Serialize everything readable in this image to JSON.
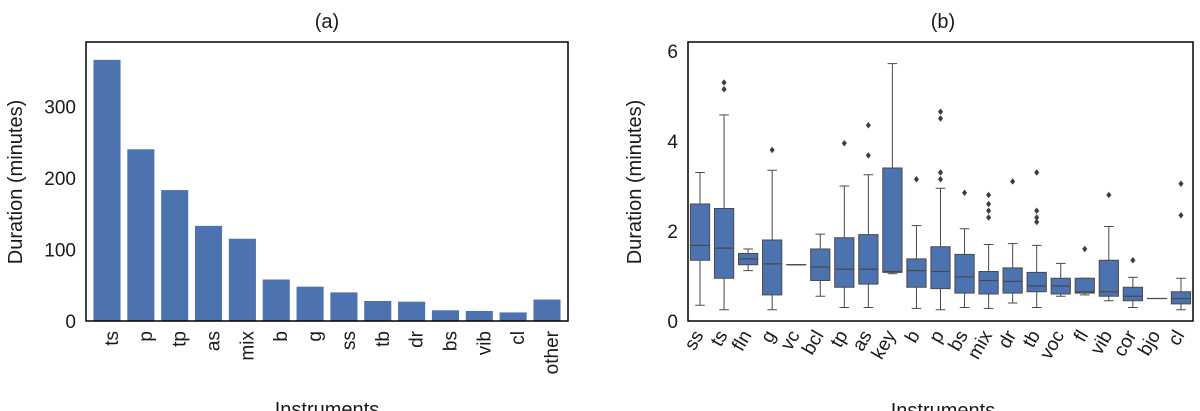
{
  "chart_data": [
    {
      "type": "bar",
      "panel_label": "(a)",
      "title": "(a)",
      "xlabel": "Instruments",
      "ylabel": "Duration (minutes)",
      "ylim": [
        0,
        390
      ],
      "yticks": [
        0,
        100,
        200,
        300
      ],
      "grid": false,
      "color": "#4c72b0",
      "categories": [
        "ts",
        "p",
        "tp",
        "as",
        "mix",
        "b",
        "g",
        "ss",
        "tb",
        "dr",
        "bs",
        "vib",
        "cl",
        "other"
      ],
      "values": [
        365,
        240,
        183,
        133,
        115,
        58,
        48,
        40,
        28,
        27,
        15,
        14,
        12,
        30
      ]
    },
    {
      "type": "box",
      "panel_label": "(b)",
      "title": "(b)",
      "xlabel": "Instruments",
      "ylabel": "Duration (minutes)",
      "ylim": [
        0,
        6.2
      ],
      "yticks": [
        0,
        2,
        4,
        6
      ],
      "grid": false,
      "color": "#4c72b0",
      "categories": [
        "ss",
        "ts",
        "fln",
        "g",
        "vc",
        "bcl",
        "tp",
        "as",
        "key",
        "b",
        "p",
        "bs",
        "mix",
        "dr",
        "tb",
        "voc",
        "fl",
        "vib",
        "cor",
        "bjo",
        "cl"
      ],
      "boxes": [
        {
          "whislo": 0.35,
          "q1": 1.35,
          "med": 1.68,
          "q3": 2.6,
          "whishi": 3.3,
          "fliers": []
        },
        {
          "whislo": 0.25,
          "q1": 0.95,
          "med": 1.62,
          "q3": 2.5,
          "whishi": 4.58,
          "fliers": [
            5.15,
            5.3
          ]
        },
        {
          "whislo": 1.12,
          "q1": 1.25,
          "med": 1.38,
          "q3": 1.5,
          "whishi": 1.6,
          "fliers": []
        },
        {
          "whislo": 0.25,
          "q1": 0.58,
          "med": 1.27,
          "q3": 1.8,
          "whishi": 3.35,
          "fliers": [
            3.8
          ]
        },
        {
          "whislo": 1.25,
          "q1": 1.25,
          "med": 1.25,
          "q3": 1.25,
          "whishi": 1.25,
          "fliers": []
        },
        {
          "whislo": 0.55,
          "q1": 0.9,
          "med": 1.2,
          "q3": 1.6,
          "whishi": 1.93,
          "fliers": []
        },
        {
          "whislo": 0.3,
          "q1": 0.75,
          "med": 1.15,
          "q3": 1.85,
          "whishi": 3.0,
          "fliers": [
            3.95
          ]
        },
        {
          "whislo": 0.3,
          "q1": 0.82,
          "med": 1.15,
          "q3": 1.92,
          "whishi": 3.25,
          "fliers": [
            3.68,
            4.35
          ]
        },
        {
          "whislo": 1.05,
          "q1": 1.08,
          "med": 1.1,
          "q3": 3.4,
          "whishi": 5.72,
          "fliers": []
        },
        {
          "whislo": 0.28,
          "q1": 0.75,
          "med": 1.12,
          "q3": 1.38,
          "whishi": 2.12,
          "fliers": [
            3.15
          ]
        },
        {
          "whislo": 0.25,
          "q1": 0.72,
          "med": 1.1,
          "q3": 1.65,
          "whishi": 2.95,
          "fliers": [
            3.15,
            3.3,
            4.5,
            4.65
          ]
        },
        {
          "whislo": 0.3,
          "q1": 0.62,
          "med": 0.98,
          "q3": 1.48,
          "whishi": 2.05,
          "fliers": [
            2.85
          ]
        },
        {
          "whislo": 0.28,
          "q1": 0.6,
          "med": 0.9,
          "q3": 1.1,
          "whishi": 1.7,
          "fliers": [
            2.3,
            2.45,
            2.6,
            2.8
          ]
        },
        {
          "whislo": 0.4,
          "q1": 0.62,
          "med": 0.88,
          "q3": 1.18,
          "whishi": 1.72,
          "fliers": [
            3.1
          ]
        },
        {
          "whislo": 0.3,
          "q1": 0.65,
          "med": 0.78,
          "q3": 1.08,
          "whishi": 1.68,
          "fliers": [
            2.2,
            2.3,
            2.45,
            3.3
          ]
        },
        {
          "whislo": 0.55,
          "q1": 0.6,
          "med": 0.78,
          "q3": 0.95,
          "whishi": 1.28,
          "fliers": []
        },
        {
          "whislo": 0.58,
          "q1": 0.62,
          "med": 0.65,
          "q3": 0.95,
          "whishi": 0.95,
          "fliers": [
            1.6
          ]
        },
        {
          "whislo": 0.45,
          "q1": 0.55,
          "med": 0.65,
          "q3": 1.35,
          "whishi": 2.1,
          "fliers": [
            2.8
          ]
        },
        {
          "whislo": 0.3,
          "q1": 0.45,
          "med": 0.55,
          "q3": 0.75,
          "whishi": 0.97,
          "fliers": [
            1.35
          ]
        },
        {
          "whislo": 0.5,
          "q1": 0.5,
          "med": 0.5,
          "q3": 0.5,
          "whishi": 0.5,
          "fliers": []
        },
        {
          "whislo": 0.25,
          "q1": 0.38,
          "med": 0.5,
          "q3": 0.65,
          "whishi": 0.95,
          "fliers": [
            2.35,
            3.05
          ]
        }
      ]
    }
  ]
}
